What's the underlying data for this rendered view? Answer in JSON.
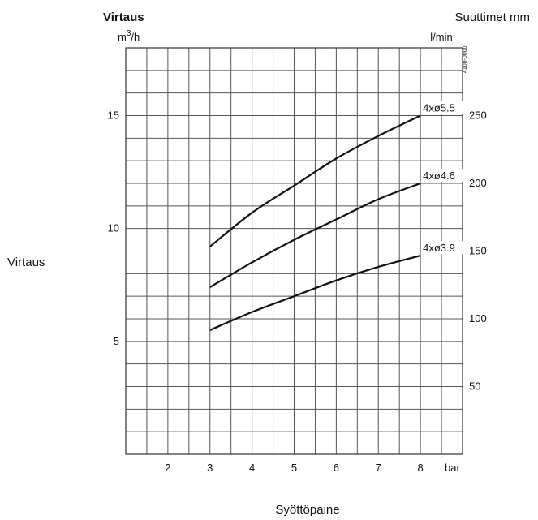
{
  "chart_data": {
    "type": "line",
    "title": "Virtaus",
    "corner_label": "Suuttimet mm",
    "ylabel_left": "Virtaus",
    "xlabel": "Syöttöpaine",
    "x_unit": "bar",
    "y_left_unit": "m3/h",
    "y_right_unit": "l/min",
    "figure_code": "4108-0000",
    "xlim": [
      1.0,
      9.0
    ],
    "ylim": [
      0.0,
      18.0
    ],
    "x_grid_step": 0.5,
    "y_grid_step": 1.0,
    "x_ticks": [
      2,
      3,
      4,
      5,
      6,
      7,
      8
    ],
    "y_left_ticks": [
      5,
      10,
      15
    ],
    "y_right_ticks": [
      50,
      100,
      150,
      200,
      250
    ],
    "y_right_per_left": 16.6667,
    "grid": true,
    "series": [
      {
        "name": "4xø5.5",
        "x": [
          3,
          4,
          5,
          6,
          7,
          8
        ],
        "y": [
          9.2,
          10.7,
          11.9,
          13.1,
          14.1,
          15.0
        ]
      },
      {
        "name": "4xø4.6",
        "x": [
          3,
          4,
          5,
          6,
          7,
          8
        ],
        "y": [
          7.4,
          8.5,
          9.5,
          10.4,
          11.3,
          12.0
        ]
      },
      {
        "name": "4xø3.9",
        "x": [
          3,
          4,
          5,
          6,
          7,
          8
        ],
        "y": [
          5.5,
          6.3,
          7.0,
          7.7,
          8.3,
          8.8
        ]
      }
    ]
  }
}
